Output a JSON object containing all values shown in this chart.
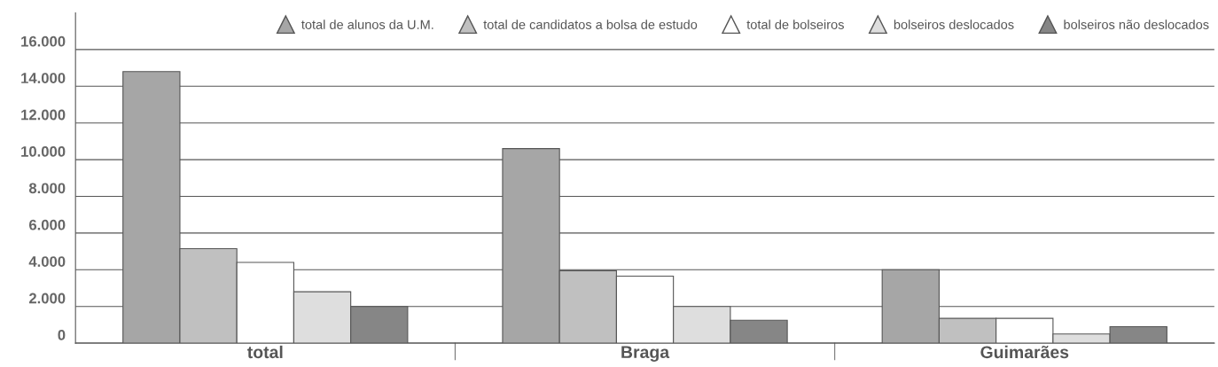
{
  "chart_data": {
    "type": "bar",
    "categories": [
      "total",
      "Braga",
      "Guimarães"
    ],
    "series": [
      {
        "name": "total de alunos da U.M.",
        "color": "#a6a6a6",
        "values": [
          14800,
          10600,
          4000
        ]
      },
      {
        "name": "total de candidatos a bolsa de estudo",
        "color": "#c0c0c0",
        "values": [
          5150,
          3950,
          1350
        ]
      },
      {
        "name": "total de bolseiros",
        "color": "#ffffff",
        "values": [
          4400,
          3650,
          1350
        ]
      },
      {
        "name": "bolseiros deslocados",
        "color": "#dedede",
        "values": [
          2800,
          2000,
          500
        ]
      },
      {
        "name": "bolseiros não deslocados",
        "color": "#868686",
        "values": [
          2000,
          1250,
          900
        ]
      }
    ],
    "ylim": [
      0,
      18000
    ],
    "yticks": [
      {
        "value": 0,
        "label": "0"
      },
      {
        "value": 2000,
        "label": "2.000"
      },
      {
        "value": 4000,
        "label": "4.000"
      },
      {
        "value": 6000,
        "label": "6.000"
      },
      {
        "value": 8000,
        "label": "8.000"
      },
      {
        "value": 10000,
        "label": "10.000"
      },
      {
        "value": 12000,
        "label": "12.000"
      },
      {
        "value": 14000,
        "label": "14.000"
      },
      {
        "value": 16000,
        "label": "16.000"
      }
    ],
    "grid": "y",
    "legend": "top right",
    "marker": "triangle"
  }
}
